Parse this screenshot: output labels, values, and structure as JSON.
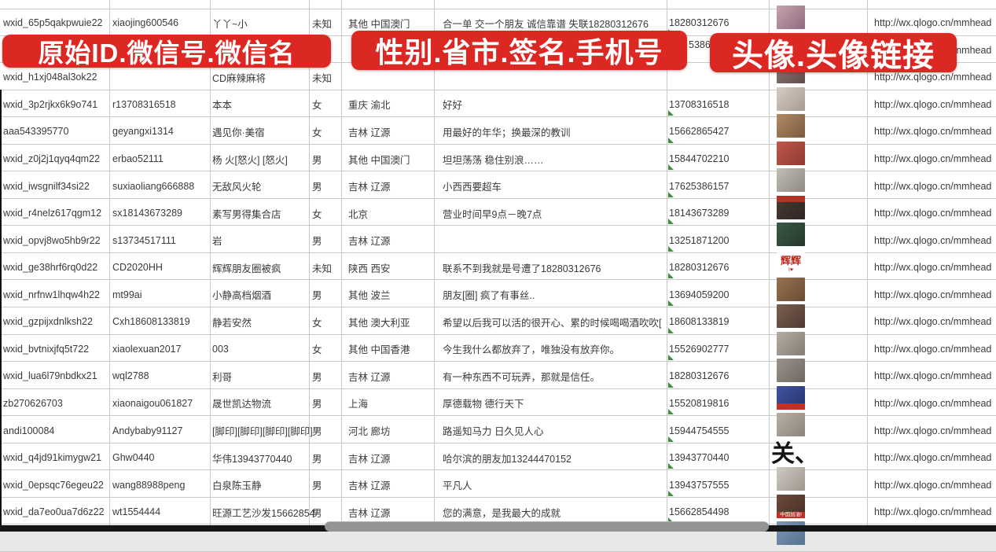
{
  "banners": {
    "left": "原始ID.微信号.微信名",
    "middle": "性别.省市.签名.手机号",
    "right": "头像.头像链接",
    "color": "#dc2823"
  },
  "fragments": {
    "row2_phone": "5386"
  },
  "marker_color": "#3f8f3f",
  "avatar_url_text": "http://wx.qlogo.cn/mmhead",
  "rows": [
    {
      "wxid": "wxid_65p5qakpwuie22",
      "alias": "xiaojing600546",
      "name": "丫丫~小",
      "gender": "未知",
      "region": "其他 中国澳门",
      "signature": "合一单 交一个朋友 诚信靠谱 失联18280312676",
      "phone": "18280312676",
      "url": "http://wx.qlogo.cn/mmhead",
      "avatar": {
        "bg": "#c9a3ad",
        "bg2": "#8d6b7e"
      }
    },
    {
      "wxid": "",
      "alias": "",
      "name": "",
      "gender": "",
      "region": "",
      "signature": "",
      "phone": "",
      "url": "http://wx.qlogo.cn/mmhead",
      "avatar": null
    },
    {
      "wxid": "wxid_h1xj048al3ok22",
      "alias": "",
      "name": "CD麻辣麻将",
      "gender": "未知",
      "region": "",
      "signature": "",
      "phone": "",
      "url": "http://wx.qlogo.cn/mmhead",
      "avatar": {
        "bg": "#8d7a76",
        "bg2": "#5f4c49"
      }
    },
    {
      "wxid": "wxid_3p2rjkx6k9o741",
      "alias": "r13708316518",
      "name": "本本",
      "gender": "女",
      "region": "重庆 渝北",
      "signature": "好好",
      "phone": "13708316518",
      "url": "http://wx.qlogo.cn/mmhead",
      "avatar": {
        "bg": "#d6cdc6",
        "bg2": "#a89a90"
      }
    },
    {
      "wxid": "aaa543395770",
      "alias": "geyangxi1314",
      "name": "遇见你·美宿",
      "gender": "女",
      "region": "吉林 辽源",
      "signature": "用最好的年华；换最深的教训",
      "phone": "15662865427",
      "url": "http://wx.qlogo.cn/mmhead",
      "avatar": {
        "bg": "#b08a63",
        "bg2": "#7a5a3e"
      }
    },
    {
      "wxid": "wxid_z0j2j1qyq4qm22",
      "alias": "erbao52111",
      "name": "杨 火[怒火] [怒火]",
      "gender": "男",
      "region": "其他 中国澳门",
      "signature": "坦坦荡荡 稳住别浪……",
      "phone": "15844702210",
      "url": "http://wx.qlogo.cn/mmhead",
      "avatar": {
        "bg": "#c0574a",
        "bg2": "#8e3a32"
      }
    },
    {
      "wxid": "wxid_iwsgnilf34si22",
      "alias": "suxiaoliang666888",
      "name": "无敌风火轮",
      "gender": "男",
      "region": "吉林 辽源",
      "signature": "小西西要超车",
      "phone": "17625386157",
      "url": "http://wx.qlogo.cn/mmhead",
      "avatar": {
        "bg": "#c2bdb5",
        "bg2": "#8e8a82"
      }
    },
    {
      "wxid": "wxid_r4nelz617qgm12",
      "alias": "sx18143673289",
      "name": "素写男得集合店",
      "gender": "女",
      "region": "北京",
      "signature": "营业时间早9点－晚7点",
      "phone": "18143673289",
      "url": "http://wx.qlogo.cn/mmhead",
      "avatar": {
        "bg": "#4a3b35",
        "bg2": "#2e2522",
        "accent": "#b03326",
        "accent_pos": "top"
      }
    },
    {
      "wxid": "wxid_opvj8wo5hb9r22",
      "alias": "s13734517111",
      "name": "岩",
      "gender": "男",
      "region": "吉林 辽源",
      "signature": "",
      "phone": "13251871200",
      "url": "http://wx.qlogo.cn/mmhead",
      "avatar": {
        "bg": "#3c5a45",
        "bg2": "#24362a"
      }
    },
    {
      "wxid": "wxid_ge38hrf6rq0d22",
      "alias": "CD2020HH",
      "name": "辉辉朋友圈被疯",
      "gender": "未知",
      "region": "陕西 西安",
      "signature": "联系不到我就是号遭了18280312676",
      "phone": "18280312676",
      "url": "http://wx.qlogo.cn/mmhead",
      "avatar": {
        "bg": "#ffffff",
        "label": "辉辉",
        "label_color": "#c22218",
        "sub": "I♥",
        "size": "tall"
      }
    },
    {
      "wxid": "wxid_nrfnw1lhqw4h22",
      "alias": "mt99ai",
      "name": "小静高档烟酒",
      "gender": "男",
      "region": "其他 波兰",
      "signature": "朋友[圈] 疯了有事丝..",
      "phone": "13694059200",
      "url": "http://wx.qlogo.cn/mmhead",
      "avatar": {
        "bg": "#97724f",
        "bg2": "#6b4c34"
      }
    },
    {
      "wxid": "wxid_gzpijxdnlksh22",
      "alias": "Cxh18608133819",
      "name": "静若安然",
      "gender": "女",
      "region": "其他 澳大利亚",
      "signature": "希望以后我可以活的很开心、累的时候喝喝酒吹吹[",
      "phone": "18608133819",
      "url": "http://wx.qlogo.cn/mmhead",
      "avatar": {
        "bg": "#7c5f52",
        "bg2": "#4f3a30"
      }
    },
    {
      "wxid": "wxid_bvtnixjfq5t722",
      "alias": "xiaolexuan2017",
      "name": "003",
      "gender": "女",
      "region": "其他 中国香港",
      "signature": "今生我什么都放弃了，唯独没有放弃你。",
      "phone": "15526902777",
      "url": "http://wx.qlogo.cn/mmhead",
      "avatar": {
        "bg": "#b5aca2",
        "bg2": "#857d74"
      }
    },
    {
      "wxid": "wxid_lua6l79nbdkx21",
      "alias": "wql2788",
      "name": "利哥",
      "gender": "男",
      "region": "吉林 辽源",
      "signature": "有一种东西不可玩弄，那就是信任。",
      "phone": "18280312676",
      "url": "http://wx.qlogo.cn/mmhead",
      "avatar": {
        "bg": "#9a948c",
        "bg2": "#6d675f"
      }
    },
    {
      "wxid": "zb270626703",
      "alias": "xiaonaigou061827",
      "name": "晟世凯达物流",
      "gender": "男",
      "region": "上海",
      "signature": "厚德载物 德行天下",
      "phone": "15520819816",
      "url": "http://wx.qlogo.cn/mmhead",
      "avatar": {
        "bg": "#3f54a0",
        "bg2": "#27326b",
        "accent": "#c03026"
      }
    },
    {
      "wxid": "andi100084",
      "alias": "Andybaby91127",
      "name": "[脚印][脚印][脚印][脚印]",
      "gender": "男",
      "region": "河北 廊坊",
      "signature": "路遥知马力 日久见人心",
      "phone": "15944754555",
      "url": "http://wx.qlogo.cn/mmhead",
      "avatar": {
        "bg": "#b7b0a6",
        "bg2": "#8a847a"
      }
    },
    {
      "wxid": "wxid_q4jd91kimygw21",
      "alias": "Ghw0440",
      "name": "华伟13943770440",
      "gender": "男",
      "region": "吉林 辽源",
      "signature": "哈尔滨的朋友加13244470152",
      "phone": "13943770440",
      "url": "http://wx.qlogo.cn/mmhead",
      "avatar": {
        "bg": "transparent",
        "label": "关、",
        "label_color": "#141414",
        "size": "big"
      }
    },
    {
      "wxid": "wxid_0epsqc76egeu22",
      "alias": "wang88988peng",
      "name": "白泉陈玉静",
      "gender": "男",
      "region": "吉林 辽源",
      "signature": "平凡人",
      "phone": "13943757555",
      "url": "http://wx.qlogo.cn/mmhead",
      "avatar": {
        "bg": "#cfcac2",
        "bg2": "#9d978e"
      }
    },
    {
      "wxid": "wxid_da7eo0ua7d6z22",
      "alias": "wt1554444",
      "name": "旺源工艺沙发15662854",
      "gender": "男",
      "region": "吉林 辽源",
      "signature": "您的满意，是我最大的成就",
      "phone": "15662854498",
      "url": "http://wx.qlogo.cn/mmhead",
      "avatar": {
        "bg": "#6e4a3c",
        "bg2": "#472e26",
        "accent": "#c03026",
        "accent_label": "中国加油!"
      }
    },
    {
      "wxid": "",
      "alias": "",
      "name": "",
      "gender": "",
      "region": "",
      "signature": "",
      "phone": "",
      "url": "",
      "avatar": {
        "bg": "#7f96b5",
        "bg2": "#56708f"
      }
    }
  ]
}
